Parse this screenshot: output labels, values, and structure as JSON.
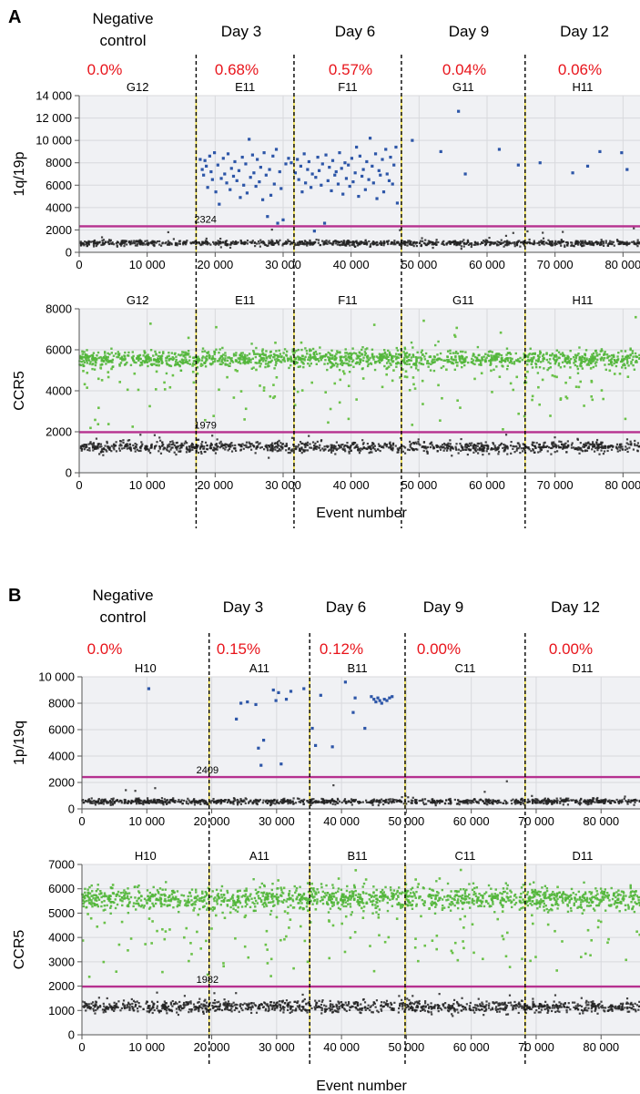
{
  "figure": {
    "panels": [
      {
        "letter": "A",
        "groups": [
          {
            "name": "Negative control",
            "name_lines": [
              "Negative",
              "control"
            ],
            "percent": "0.0%"
          },
          {
            "name": "Day 3",
            "name_lines": [
              "Day 3"
            ],
            "percent": "0.68%"
          },
          {
            "name": "Day 6",
            "name_lines": [
              "Day 6"
            ],
            "percent": "0.57%"
          },
          {
            "name": "Day 9",
            "name_lines": [
              "Day 9"
            ],
            "percent": "0.04%"
          },
          {
            "name": "Day 12",
            "name_lines": [
              "Day 12"
            ],
            "percent": "0.06%"
          }
        ]
      },
      {
        "letter": "B",
        "groups": [
          {
            "name": "Negative control",
            "name_lines": [
              "Negative",
              "control"
            ],
            "percent": "0.0%"
          },
          {
            "name": "Day 3",
            "name_lines": [
              "Day 3"
            ],
            "percent": "0.15%"
          },
          {
            "name": "Day 6",
            "name_lines": [
              "Day 6"
            ],
            "percent": "0.12%"
          },
          {
            "name": "Day 9",
            "name_lines": [
              "Day 9"
            ],
            "percent": "0.00%"
          },
          {
            "name": "Day 12",
            "name_lines": [
              "Day 12"
            ],
            "percent": "0.00%"
          }
        ]
      }
    ],
    "colors": {
      "positive_target": "#2d56a8",
      "positive_reference": "#52b63a",
      "negative": "#222222",
      "threshold": "#b6318f",
      "well_divider": "#f3e24a",
      "group_divider": "#000000",
      "percent_text": "#e8141b",
      "plot_background": "#f0f1f4",
      "grid": "#d8d9dd"
    }
  },
  "chart_data": [
    {
      "type": "scatter",
      "panel": "A",
      "ylabel": "1q/19p",
      "xlabel": "",
      "xlim": [
        0,
        82500
      ],
      "ylim": [
        0,
        14000
      ],
      "xticks": [
        0,
        10000,
        20000,
        30000,
        40000,
        50000,
        60000,
        70000,
        80000
      ],
      "xtick_labels": [
        "0",
        "10 000",
        "20 000",
        "30 000",
        "40 000",
        "50 000",
        "60 000",
        "70 000",
        "80 000"
      ],
      "yticks": [
        0,
        2000,
        4000,
        6000,
        8000,
        10000,
        12000,
        14000
      ],
      "ytick_labels": [
        "0",
        "2000",
        "4000",
        "6000",
        "8000",
        "10 000",
        "12 000",
        "14 000"
      ],
      "grid": true,
      "threshold": {
        "value": 2324,
        "label": "2324"
      },
      "wells": [
        {
          "name": "G12",
          "x_start": 0,
          "x_end": 17200
        },
        {
          "name": "E11",
          "x_start": 17200,
          "x_end": 31600
        },
        {
          "name": "F11",
          "x_start": 31600,
          "x_end": 47400
        },
        {
          "name": "G11",
          "x_start": 47400,
          "x_end": 65600
        },
        {
          "name": "H11",
          "x_start": 65600,
          "x_end": 82500
        }
      ],
      "group_dividers": [
        17200,
        31600,
        47400,
        65600
      ],
      "negative_band": {
        "center": 820,
        "spread": 380,
        "count": 1000,
        "outlier_max": 2200
      },
      "positive_band": null,
      "positive_points": [
        [
          17800,
          8300
        ],
        [
          18100,
          7400
        ],
        [
          18300,
          6900
        ],
        [
          18500,
          8200
        ],
        [
          18700,
          7700
        ],
        [
          18900,
          5800
        ],
        [
          19200,
          8600
        ],
        [
          19400,
          7200
        ],
        [
          19600,
          6500
        ],
        [
          19900,
          8900
        ],
        [
          20100,
          5400
        ],
        [
          20400,
          7800
        ],
        [
          20600,
          4300
        ],
        [
          20900,
          6600
        ],
        [
          21200,
          8400
        ],
        [
          21400,
          7000
        ],
        [
          21700,
          6200
        ],
        [
          21900,
          8800
        ],
        [
          22200,
          5600
        ],
        [
          22400,
          7500
        ],
        [
          22700,
          6800
        ],
        [
          22900,
          8100
        ],
        [
          23200,
          6400
        ],
        [
          23500,
          7300
        ],
        [
          23700,
          4900
        ],
        [
          24000,
          8500
        ],
        [
          24200,
          6000
        ],
        [
          24500,
          7900
        ],
        [
          24700,
          5300
        ],
        [
          25000,
          10100
        ],
        [
          25200,
          6700
        ],
        [
          25500,
          8700
        ],
        [
          25700,
          7100
        ],
        [
          26000,
          5900
        ],
        [
          26200,
          8300
        ],
        [
          26500,
          6300
        ],
        [
          26700,
          7600
        ],
        [
          27000,
          4700
        ],
        [
          27200,
          8900
        ],
        [
          27500,
          6900
        ],
        [
          27700,
          3200
        ],
        [
          28000,
          7400
        ],
        [
          28200,
          5100
        ],
        [
          28500,
          8600
        ],
        [
          28700,
          6100
        ],
        [
          29000,
          9200
        ],
        [
          29200,
          2600
        ],
        [
          29500,
          7200
        ],
        [
          29700,
          5700
        ],
        [
          30000,
          2900
        ],
        [
          30400,
          7900
        ],
        [
          30800,
          8400
        ],
        [
          31200,
          8000
        ],
        [
          31800,
          7100
        ],
        [
          32100,
          8300
        ],
        [
          32300,
          6500
        ],
        [
          32600,
          7700
        ],
        [
          32800,
          5400
        ],
        [
          33100,
          8800
        ],
        [
          33300,
          6200
        ],
        [
          33600,
          7400
        ],
        [
          33800,
          8100
        ],
        [
          34100,
          5800
        ],
        [
          34300,
          7000
        ],
        [
          34600,
          1900
        ],
        [
          34800,
          6700
        ],
        [
          35100,
          8500
        ],
        [
          35300,
          7300
        ],
        [
          35600,
          6000
        ],
        [
          35800,
          7900
        ],
        [
          36100,
          2600
        ],
        [
          36300,
          8700
        ],
        [
          36600,
          6400
        ],
        [
          36800,
          7600
        ],
        [
          37100,
          5500
        ],
        [
          37300,
          8200
        ],
        [
          37600,
          6900
        ],
        [
          37800,
          7200
        ],
        [
          38100,
          6100
        ],
        [
          38300,
          8900
        ],
        [
          38600,
          7500
        ],
        [
          38800,
          5200
        ],
        [
          39100,
          8000
        ],
        [
          39300,
          6600
        ],
        [
          39600,
          7800
        ],
        [
          39800,
          5900
        ],
        [
          40100,
          8400
        ],
        [
          40300,
          6300
        ],
        [
          40600,
          7100
        ],
        [
          40800,
          9400
        ],
        [
          41100,
          5000
        ],
        [
          41300,
          8600
        ],
        [
          41600,
          6800
        ],
        [
          41800,
          7400
        ],
        [
          42100,
          5600
        ],
        [
          42300,
          8100
        ],
        [
          42600,
          6500
        ],
        [
          42800,
          10200
        ],
        [
          43100,
          7700
        ],
        [
          43300,
          6200
        ],
        [
          43600,
          8800
        ],
        [
          43800,
          4800
        ],
        [
          44100,
          7300
        ],
        [
          44300,
          6900
        ],
        [
          44600,
          8300
        ],
        [
          44800,
          5400
        ],
        [
          45100,
          9200
        ],
        [
          45300,
          7000
        ],
        [
          45600,
          6400
        ],
        [
          45800,
          8500
        ],
        [
          46100,
          6100
        ],
        [
          46300,
          7800
        ],
        [
          46600,
          9400
        ],
        [
          46800,
          4400
        ],
        [
          49000,
          10000
        ],
        [
          53200,
          9000
        ],
        [
          55800,
          12600
        ],
        [
          56800,
          7000
        ],
        [
          61800,
          9200
        ],
        [
          64600,
          7800
        ],
        [
          67800,
          8000
        ],
        [
          72600,
          7100
        ],
        [
          74800,
          7700
        ],
        [
          76600,
          9000
        ],
        [
          79800,
          8900
        ],
        [
          80600,
          7400
        ]
      ]
    },
    {
      "type": "scatter",
      "panel": "A",
      "ylabel": "CCR5",
      "xlabel": "Event number",
      "xlim": [
        0,
        82500
      ],
      "ylim": [
        0,
        8000
      ],
      "xticks": [
        0,
        10000,
        20000,
        30000,
        40000,
        50000,
        60000,
        70000,
        80000
      ],
      "xtick_labels": [
        "0",
        "10 000",
        "20 000",
        "30 000",
        "40 000",
        "50 000",
        "60 000",
        "70 000",
        "80 000"
      ],
      "yticks": [
        0,
        2000,
        4000,
        6000,
        8000
      ],
      "ytick_labels": [
        "0",
        "2000",
        "4000",
        "6000",
        "8000"
      ],
      "grid": true,
      "threshold": {
        "value": 1979,
        "label": "1979"
      },
      "wells": [
        {
          "name": "G12",
          "x_start": 0,
          "x_end": 17200
        },
        {
          "name": "E11",
          "x_start": 17200,
          "x_end": 31600
        },
        {
          "name": "F11",
          "x_start": 31600,
          "x_end": 47400
        },
        {
          "name": "G11",
          "x_start": 47400,
          "x_end": 65600
        },
        {
          "name": "H11",
          "x_start": 65600,
          "x_end": 82500
        }
      ],
      "group_dividers": [
        17200,
        31600,
        47400,
        65600
      ],
      "negative_band": {
        "center": 1250,
        "spread": 420,
        "count": 1100,
        "outlier_max": 1900
      },
      "positive_band": {
        "center": 5550,
        "spread": 750,
        "count": 1400,
        "low_tail_min": 2100,
        "low_tail_count": 140,
        "high_tail_max": 7700,
        "high_tail_count": 12
      },
      "positive_points": []
    },
    {
      "type": "scatter",
      "panel": "B",
      "ylabel": "1p/19q",
      "xlabel": "",
      "xlim": [
        0,
        86000
      ],
      "ylim": [
        0,
        10000
      ],
      "xticks": [
        0,
        10000,
        20000,
        30000,
        40000,
        50000,
        60000,
        70000,
        80000
      ],
      "xtick_labels": [
        "0",
        "10 000",
        "20 000",
        "30 000",
        "40 000",
        "50 000",
        "60 000",
        "70 000",
        "80 000"
      ],
      "yticks": [
        0,
        2000,
        4000,
        6000,
        8000,
        10000
      ],
      "ytick_labels": [
        "0",
        "2000",
        "4000",
        "6000",
        "8000",
        "10 000"
      ],
      "grid": true,
      "threshold": {
        "value": 2409,
        "label": "2409"
      },
      "wells": [
        {
          "name": "H10",
          "x_start": 0,
          "x_end": 19600
        },
        {
          "name": "A11",
          "x_start": 19600,
          "x_end": 35100
        },
        {
          "name": "B11",
          "x_start": 35100,
          "x_end": 49800
        },
        {
          "name": "C11",
          "x_start": 49800,
          "x_end": 68300
        },
        {
          "name": "D11",
          "x_start": 68300,
          "x_end": 86000
        }
      ],
      "group_dividers": [
        19600,
        35100,
        49800,
        68300
      ],
      "negative_band": {
        "center": 560,
        "spread": 320,
        "count": 1000,
        "outlier_max": 2200
      },
      "positive_band": null,
      "positive_points": [
        [
          10300,
          9100
        ],
        [
          23800,
          6800
        ],
        [
          24500,
          8000
        ],
        [
          25500,
          8100
        ],
        [
          26800,
          7900
        ],
        [
          27200,
          4600
        ],
        [
          27600,
          3300
        ],
        [
          28000,
          5200
        ],
        [
          29500,
          9000
        ],
        [
          29900,
          8200
        ],
        [
          30300,
          8800
        ],
        [
          30700,
          3400
        ],
        [
          31500,
          8300
        ],
        [
          32200,
          8900
        ],
        [
          34200,
          9100
        ],
        [
          35500,
          6100
        ],
        [
          36000,
          4800
        ],
        [
          36800,
          8600
        ],
        [
          38600,
          4700
        ],
        [
          40600,
          9600
        ],
        [
          41800,
          7300
        ],
        [
          42100,
          8400
        ],
        [
          43600,
          6100
        ],
        [
          44600,
          8500
        ],
        [
          45000,
          8300
        ],
        [
          45300,
          8100
        ],
        [
          45600,
          8400
        ],
        [
          45900,
          8200
        ],
        [
          46200,
          8000
        ],
        [
          46600,
          8300
        ],
        [
          47000,
          8200
        ],
        [
          47400,
          8400
        ],
        [
          47800,
          8500
        ]
      ]
    },
    {
      "type": "scatter",
      "panel": "B",
      "ylabel": "CCR5",
      "xlabel": "Event number",
      "xlim": [
        0,
        86000
      ],
      "ylim": [
        0,
        7000
      ],
      "xticks": [
        0,
        10000,
        20000,
        30000,
        40000,
        50000,
        60000,
        70000,
        80000
      ],
      "xtick_labels": [
        "0",
        "10 000",
        "20 000",
        "30 000",
        "40 000",
        "50 000",
        "60 000",
        "70 000",
        "80 000"
      ],
      "yticks": [
        0,
        1000,
        2000,
        3000,
        4000,
        5000,
        6000,
        7000
      ],
      "ytick_labels": [
        "0",
        "1000",
        "2000",
        "3000",
        "4000",
        "5000",
        "6000",
        "7000"
      ],
      "grid": true,
      "threshold": {
        "value": 1982,
        "label": "1982"
      },
      "wells": [
        {
          "name": "H10",
          "x_start": 0,
          "x_end": 19600
        },
        {
          "name": "A11",
          "x_start": 19600,
          "x_end": 35100
        },
        {
          "name": "B11",
          "x_start": 35100,
          "x_end": 49800
        },
        {
          "name": "C11",
          "x_start": 49800,
          "x_end": 68300
        },
        {
          "name": "D11",
          "x_start": 68300,
          "x_end": 86000
        }
      ],
      "group_dividers": [
        19600,
        35100,
        49800,
        68300
      ],
      "negative_band": {
        "center": 1150,
        "spread": 380,
        "count": 1100,
        "outlier_max": 1800
      },
      "positive_band": {
        "center": 5600,
        "spread": 800,
        "count": 1400,
        "low_tail_min": 2100,
        "low_tail_count": 140,
        "high_tail_max": 6800,
        "high_tail_count": 12
      }
    }
  ]
}
